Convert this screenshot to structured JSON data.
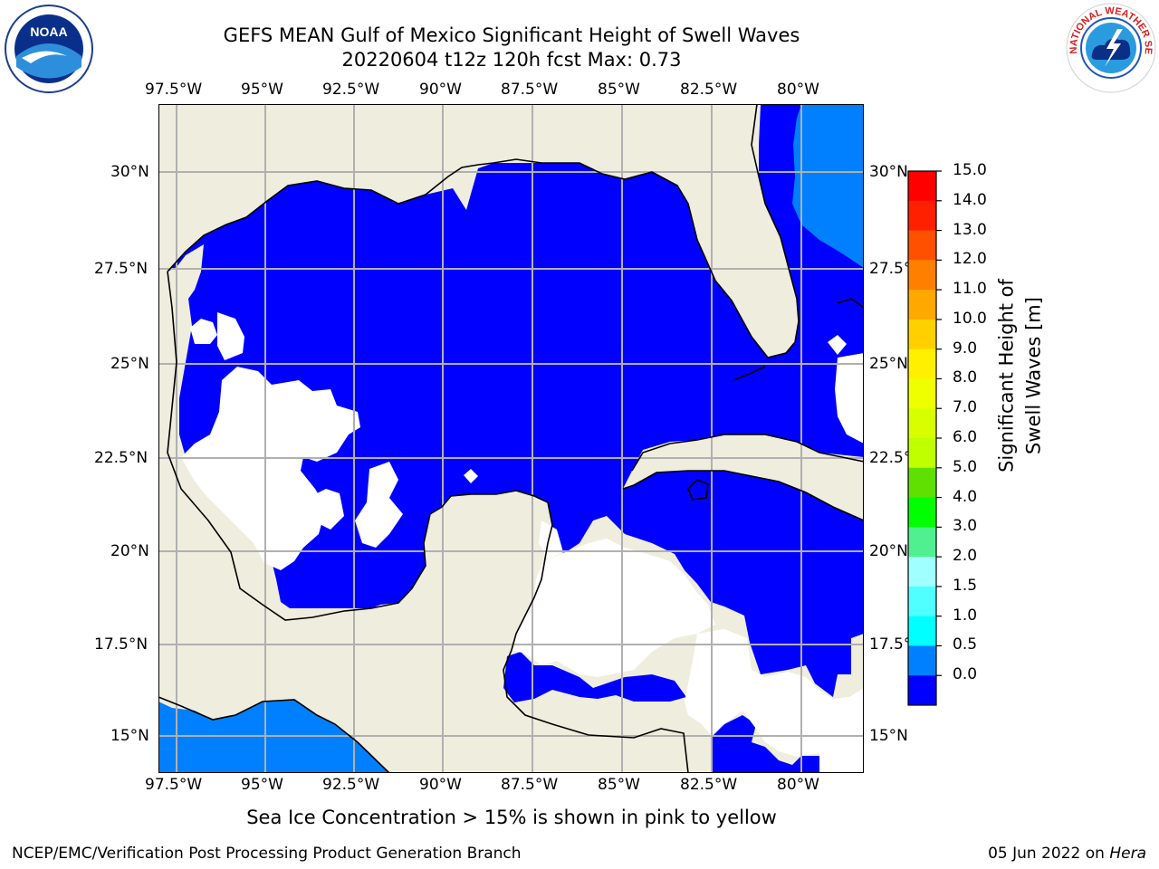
{
  "title": {
    "line1": "GEFS MEAN Gulf of Mexico Significant Height of Swell Waves",
    "line2": "20220604 t12z 120h fcst   Max: 0.73"
  },
  "map": {
    "lon_ticks": [
      "97.5°W",
      "95°W",
      "92.5°W",
      "90°W",
      "87.5°W",
      "85°W",
      "82.5°W",
      "80°W"
    ],
    "lat_ticks": [
      "30°N",
      "27.5°N",
      "25°N",
      "22.5°N",
      "20°N",
      "17.5°N",
      "15°N"
    ],
    "colors": {
      "land": "#efedde",
      "ocean_low": "#0000ff",
      "ocean_mid": "#0080ff",
      "grid": "#b0b0b0",
      "coast": "#000000"
    }
  },
  "colorbar": {
    "label": "Significant Height of Swell Waves [m]",
    "ticks": [
      "15.0",
      "14.0",
      "13.0",
      "12.0",
      "11.0",
      "10.0",
      "9.0",
      "8.0",
      "7.0",
      "6.0",
      "5.0",
      "4.0",
      "3.0",
      "2.0",
      "1.5",
      "1.0",
      "0.5",
      "0.0"
    ],
    "colors": [
      "#ff0000",
      "#ff2000",
      "#ff5000",
      "#ff8000",
      "#ffa800",
      "#ffd000",
      "#fff000",
      "#f0ff00",
      "#d8ff00",
      "#c0ff00",
      "#60e000",
      "#00ff00",
      "#50f090",
      "#a0ffff",
      "#50ffff",
      "#00ffff",
      "#0080ff",
      "#0000ff"
    ]
  },
  "note": "Sea Ice Concentration > 15% is shown in pink to yellow",
  "footer": {
    "left": "NCEP/EMC/Verification Post Processing Product Generation Branch",
    "date": "05 Jun 2022 on",
    "host": "Hera"
  },
  "logos": {
    "noaa_text": "NOAA",
    "nws_text": "NATIONAL WEATHER SERVICE"
  },
  "icons": [
    "noaa-logo-icon",
    "nws-logo-icon"
  ]
}
